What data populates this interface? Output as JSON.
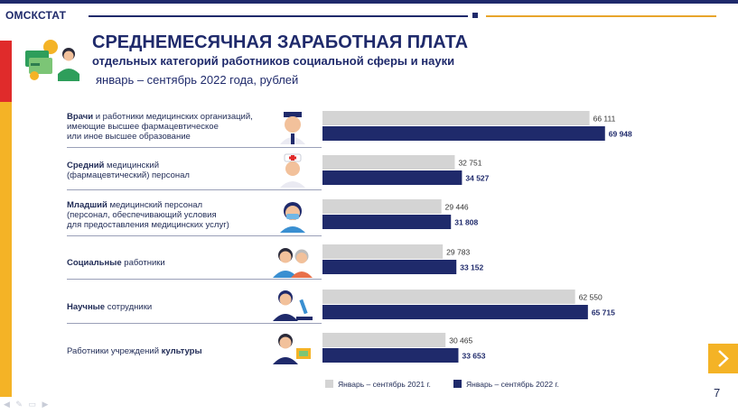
{
  "brand": "ОМСКСТАТ",
  "title": "СРЕДНЕМЕСЯЧНАЯ ЗАРАБОТНАЯ ПЛАТА",
  "subtitle": "отдельных категорий работников социальной сферы и науки",
  "period": "январь – сентябрь 2022 года, рублей",
  "page_number": "7",
  "categories": [
    {
      "bold": "Врачи",
      "rest": " и работники медицинских организаций,",
      "line2": "имеющие высшее фармацевтическое",
      "line3": "или иное высшее образование"
    },
    {
      "bold": "Средний",
      "rest": " медицинский",
      "line2": "(фармацевтический) персонал",
      "line3": ""
    },
    {
      "bold": "Младший",
      "rest": " медицинский персонал",
      "line2": "(персонал, обеспечивающий условия",
      "line3": "для предоставления медицинских услуг)"
    },
    {
      "bold": "Социальные",
      "rest": " работники",
      "line2": "",
      "line3": ""
    },
    {
      "bold": "Научные",
      "rest": " сотрудники",
      "line2": "",
      "line3": ""
    },
    {
      "pre": "Работники учреждений ",
      "bold": "культуры"
    }
  ],
  "icons": [
    "doctor-icon",
    "nurse-icon",
    "masked-medic-icon",
    "social-workers-icon",
    "scientist-microscope-icon",
    "culture-worker-icon",
    "money-cards-icon",
    "chevron-right-icon"
  ],
  "chart_data": {
    "type": "bar",
    "orientation": "horizontal",
    "categories": [
      "Врачи и работники медицинских организаций, имеющие высшее фармацевтическое или иное высшее образование",
      "Средний медицинский (фармацевтический) персонал",
      "Младший медицинский персонал (персонал, обеспечивающий условия для предоставления медицинских услуг)",
      "Социальные работники",
      "Научные сотрудники",
      "Работники учреждений культуры"
    ],
    "series": [
      {
        "name": "Январь – сентябрь 2021 г.",
        "color": "#d4d4d4",
        "values": [
          66111,
          32751,
          29446,
          29783,
          62550,
          30465
        ],
        "labels": [
          "66 111",
          "32 751",
          "29 446",
          "29 783",
          "62 550",
          "30 465"
        ]
      },
      {
        "name": "Январь – сентябрь 2022 г.",
        "color": "#1f2a6b",
        "values": [
          69948,
          34527,
          31808,
          33152,
          65715,
          33653
        ],
        "labels": [
          "69 948",
          "34 527",
          "31 808",
          "33 152",
          "65 715",
          "33 653"
        ]
      }
    ],
    "legend_position": "bottom"
  }
}
